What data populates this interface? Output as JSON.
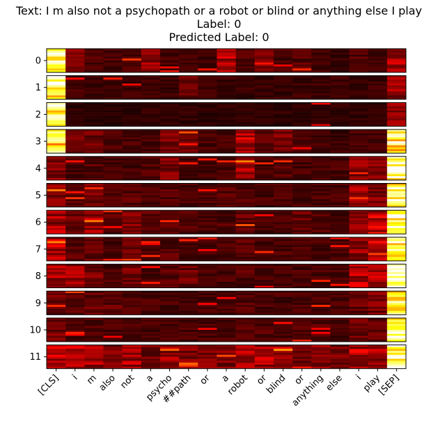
{
  "chart_data": {
    "type": "heatmap",
    "title_lines": [
      "Text: I m also not a psychopath or a robot or blind or anything else I play",
      "Label: 0",
      "Predicted Label: 0"
    ],
    "colormap": "hot",
    "tokens": [
      "[CLS]",
      "i",
      "m",
      "also",
      "not",
      "a",
      "psycho",
      "##path",
      "or",
      "a",
      "robot",
      "or",
      "blind",
      "or",
      "anything",
      "else",
      "i",
      "play",
      "[SEP]"
    ],
    "layers": [
      "0",
      "1",
      "2",
      "3",
      "4",
      "5",
      "6",
      "7",
      "8",
      "9",
      "10",
      "11"
    ],
    "rows_per_layer": 12,
    "column_intensity": [
      [
        0.95,
        0.18,
        0.12,
        0.1,
        0.12,
        0.22,
        0.1,
        0.1,
        0.08,
        0.28,
        0.12,
        0.18,
        0.1,
        0.12,
        0.1,
        0.08,
        0.12,
        0.08,
        0.25
      ],
      [
        0.97,
        0.1,
        0.08,
        0.08,
        0.08,
        0.08,
        0.08,
        0.14,
        0.08,
        0.08,
        0.08,
        0.08,
        0.08,
        0.08,
        0.08,
        0.08,
        0.08,
        0.08,
        0.22
      ],
      [
        0.99,
        0.06,
        0.05,
        0.05,
        0.06,
        0.06,
        0.06,
        0.06,
        0.06,
        0.06,
        0.06,
        0.06,
        0.06,
        0.06,
        0.06,
        0.06,
        0.06,
        0.06,
        0.22
      ],
      [
        0.85,
        0.15,
        0.18,
        0.1,
        0.1,
        0.1,
        0.18,
        0.15,
        0.1,
        0.1,
        0.3,
        0.12,
        0.18,
        0.1,
        0.1,
        0.08,
        0.1,
        0.1,
        0.9
      ],
      [
        0.2,
        0.1,
        0.12,
        0.1,
        0.1,
        0.12,
        0.18,
        0.1,
        0.1,
        0.1,
        0.28,
        0.1,
        0.12,
        0.1,
        0.1,
        0.1,
        0.2,
        0.18,
        0.95
      ],
      [
        0.2,
        0.15,
        0.18,
        0.1,
        0.12,
        0.1,
        0.12,
        0.1,
        0.1,
        0.12,
        0.12,
        0.1,
        0.1,
        0.1,
        0.1,
        0.1,
        0.22,
        0.18,
        0.97
      ],
      [
        0.25,
        0.18,
        0.25,
        0.12,
        0.2,
        0.12,
        0.12,
        0.12,
        0.1,
        0.12,
        0.15,
        0.1,
        0.1,
        0.15,
        0.12,
        0.1,
        0.22,
        0.3,
        0.98
      ],
      [
        0.28,
        0.12,
        0.15,
        0.1,
        0.15,
        0.1,
        0.12,
        0.1,
        0.1,
        0.1,
        0.12,
        0.1,
        0.1,
        0.1,
        0.1,
        0.1,
        0.22,
        0.3,
        0.96
      ],
      [
        0.25,
        0.25,
        0.2,
        0.1,
        0.18,
        0.1,
        0.12,
        0.15,
        0.1,
        0.1,
        0.12,
        0.1,
        0.1,
        0.1,
        0.1,
        0.1,
        0.28,
        0.25,
        0.97
      ],
      [
        0.15,
        0.12,
        0.15,
        0.15,
        0.12,
        0.1,
        0.1,
        0.1,
        0.1,
        0.1,
        0.12,
        0.1,
        0.1,
        0.1,
        0.1,
        0.1,
        0.15,
        0.18,
        0.99
      ],
      [
        0.18,
        0.12,
        0.12,
        0.1,
        0.1,
        0.1,
        0.1,
        0.1,
        0.1,
        0.1,
        0.12,
        0.12,
        0.1,
        0.12,
        0.12,
        0.1,
        0.15,
        0.15,
        0.97
      ],
      [
        0.32,
        0.28,
        0.25,
        0.18,
        0.25,
        0.18,
        0.22,
        0.2,
        0.18,
        0.18,
        0.25,
        0.25,
        0.25,
        0.2,
        0.22,
        0.2,
        0.28,
        0.25,
        0.96
      ]
    ],
    "grid": false,
    "legend": "none"
  }
}
